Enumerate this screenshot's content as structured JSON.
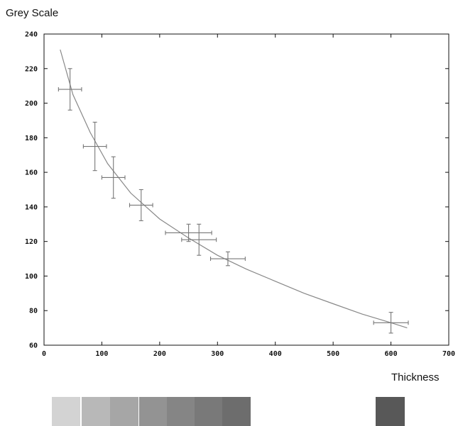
{
  "chart_data": {
    "type": "scatter",
    "xlabel": "Thickness",
    "ylabel": "Grey Scale",
    "xlim": [
      0,
      700
    ],
    "ylim": [
      60,
      240
    ],
    "x_ticks": [
      0,
      100,
      200,
      300,
      400,
      500,
      600,
      700
    ],
    "y_ticks": [
      60,
      80,
      100,
      120,
      140,
      160,
      180,
      200,
      220,
      240
    ],
    "grid": false,
    "points": [
      {
        "x": 45,
        "y": 208,
        "x_err": 20,
        "y_err": 12
      },
      {
        "x": 88,
        "y": 175,
        "x_err": 20,
        "y_err": 14
      },
      {
        "x": 120,
        "y": 157,
        "x_err": 20,
        "y_err": 12
      },
      {
        "x": 168,
        "y": 141,
        "x_err": 20,
        "y_err": 9
      },
      {
        "x": 250,
        "y": 125,
        "x_err": 40,
        "y_err": 5
      },
      {
        "x": 268,
        "y": 121,
        "x_err": 30,
        "y_err": 9
      },
      {
        "x": 318,
        "y": 110,
        "x_err": 30,
        "y_err": 4
      },
      {
        "x": 600,
        "y": 73,
        "x_err": 30,
        "y_err": 6
      }
    ],
    "fit_curve": [
      {
        "x": 28,
        "y": 231
      },
      {
        "x": 50,
        "y": 205
      },
      {
        "x": 80,
        "y": 183
      },
      {
        "x": 110,
        "y": 165
      },
      {
        "x": 150,
        "y": 148
      },
      {
        "x": 200,
        "y": 133
      },
      {
        "x": 250,
        "y": 122
      },
      {
        "x": 300,
        "y": 112
      },
      {
        "x": 350,
        "y": 104
      },
      {
        "x": 400,
        "y": 97
      },
      {
        "x": 450,
        "y": 90
      },
      {
        "x": 500,
        "y": 84
      },
      {
        "x": 550,
        "y": 78
      },
      {
        "x": 600,
        "y": 73
      },
      {
        "x": 628,
        "y": 70
      }
    ],
    "colors": {
      "axis": "#111111",
      "points": "#777777",
      "curve": "#888888"
    }
  },
  "swatches": [
    {
      "color": "#d3d3d3"
    },
    {
      "color": "#b8b8b8"
    },
    {
      "color": "#a6a6a6"
    },
    {
      "color": "#939393"
    },
    {
      "color": "#858585"
    },
    {
      "color": "#797979"
    },
    {
      "color": "#6d6d6d"
    },
    {
      "color": "#585858"
    }
  ]
}
